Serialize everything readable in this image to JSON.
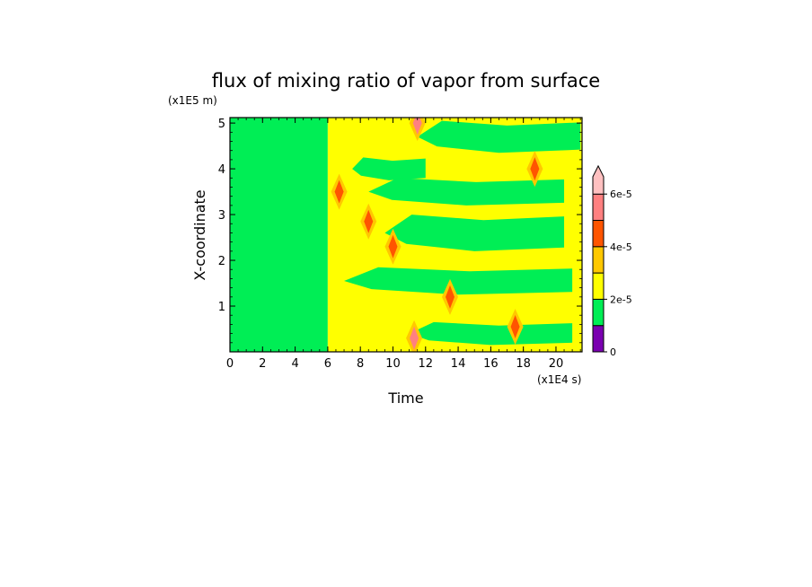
{
  "chart_data": {
    "type": "heatmap",
    "title": "flux of mixing ratio of vapor from surface",
    "xlabel": "Time",
    "ylabel": "X-coordinate",
    "x_unit": "(x1E4 s)",
    "y_unit": "(x1E5 m)",
    "xlim": [
      0,
      21.6
    ],
    "ylim": [
      0,
      5.12
    ],
    "x_ticks": [
      "0",
      "2",
      "4",
      "6",
      "8",
      "10",
      "12",
      "14",
      "16",
      "18",
      "20"
    ],
    "y_ticks": [
      "1",
      "2",
      "3",
      "4",
      "5"
    ],
    "colorbar": {
      "levels": [
        0,
        1e-05,
        2e-05,
        3e-05,
        4e-05,
        5e-05,
        6e-05,
        7e-05
      ],
      "tick_labels": [
        "0",
        "2e-5",
        "4e-5",
        "6e-5"
      ],
      "colors": [
        "#7a00b0",
        "#00ee55",
        "#ffff00",
        "#ffc800",
        "#ff5500",
        "#ff8080",
        "#ffc0c0"
      ],
      "extend": "max"
    },
    "regions": [
      {
        "t_start": 0,
        "t_end": 6,
        "level_index": 1,
        "description_level": "1e-5 to 2e-5"
      },
      {
        "t_start": 6,
        "t_end": 21.6,
        "level_index": 2,
        "description_level": "2e-5 to 3e-5"
      }
    ],
    "streaks": [
      {
        "x": 7.5,
        "y": 4.0,
        "w": 4.5,
        "h": 0.25
      },
      {
        "x": 8.5,
        "y": 3.5,
        "w": 12.0,
        "h": 0.3
      },
      {
        "x": 9.5,
        "y": 2.6,
        "w": 11.0,
        "h": 0.4
      },
      {
        "x": 7.0,
        "y": 1.55,
        "w": 14.0,
        "h": 0.3
      },
      {
        "x": 11.0,
        "y": 0.4,
        "w": 10.0,
        "h": 0.25
      },
      {
        "x": 11.5,
        "y": 4.7,
        "w": 10.0,
        "h": 0.35
      }
    ],
    "hotspots": [
      {
        "t": 6.7,
        "x": 3.5,
        "level_index": 4
      },
      {
        "t": 8.5,
        "x": 2.85,
        "level_index": 4
      },
      {
        "t": 10.0,
        "x": 2.3,
        "level_index": 4
      },
      {
        "t": 11.3,
        "x": 0.3,
        "level_index": 5
      },
      {
        "t": 13.5,
        "x": 1.2,
        "level_index": 4
      },
      {
        "t": 17.5,
        "x": 0.55,
        "level_index": 4
      },
      {
        "t": 18.7,
        "x": 4.0,
        "level_index": 4
      },
      {
        "t": 11.5,
        "x": 5.0,
        "level_index": 5
      }
    ]
  }
}
